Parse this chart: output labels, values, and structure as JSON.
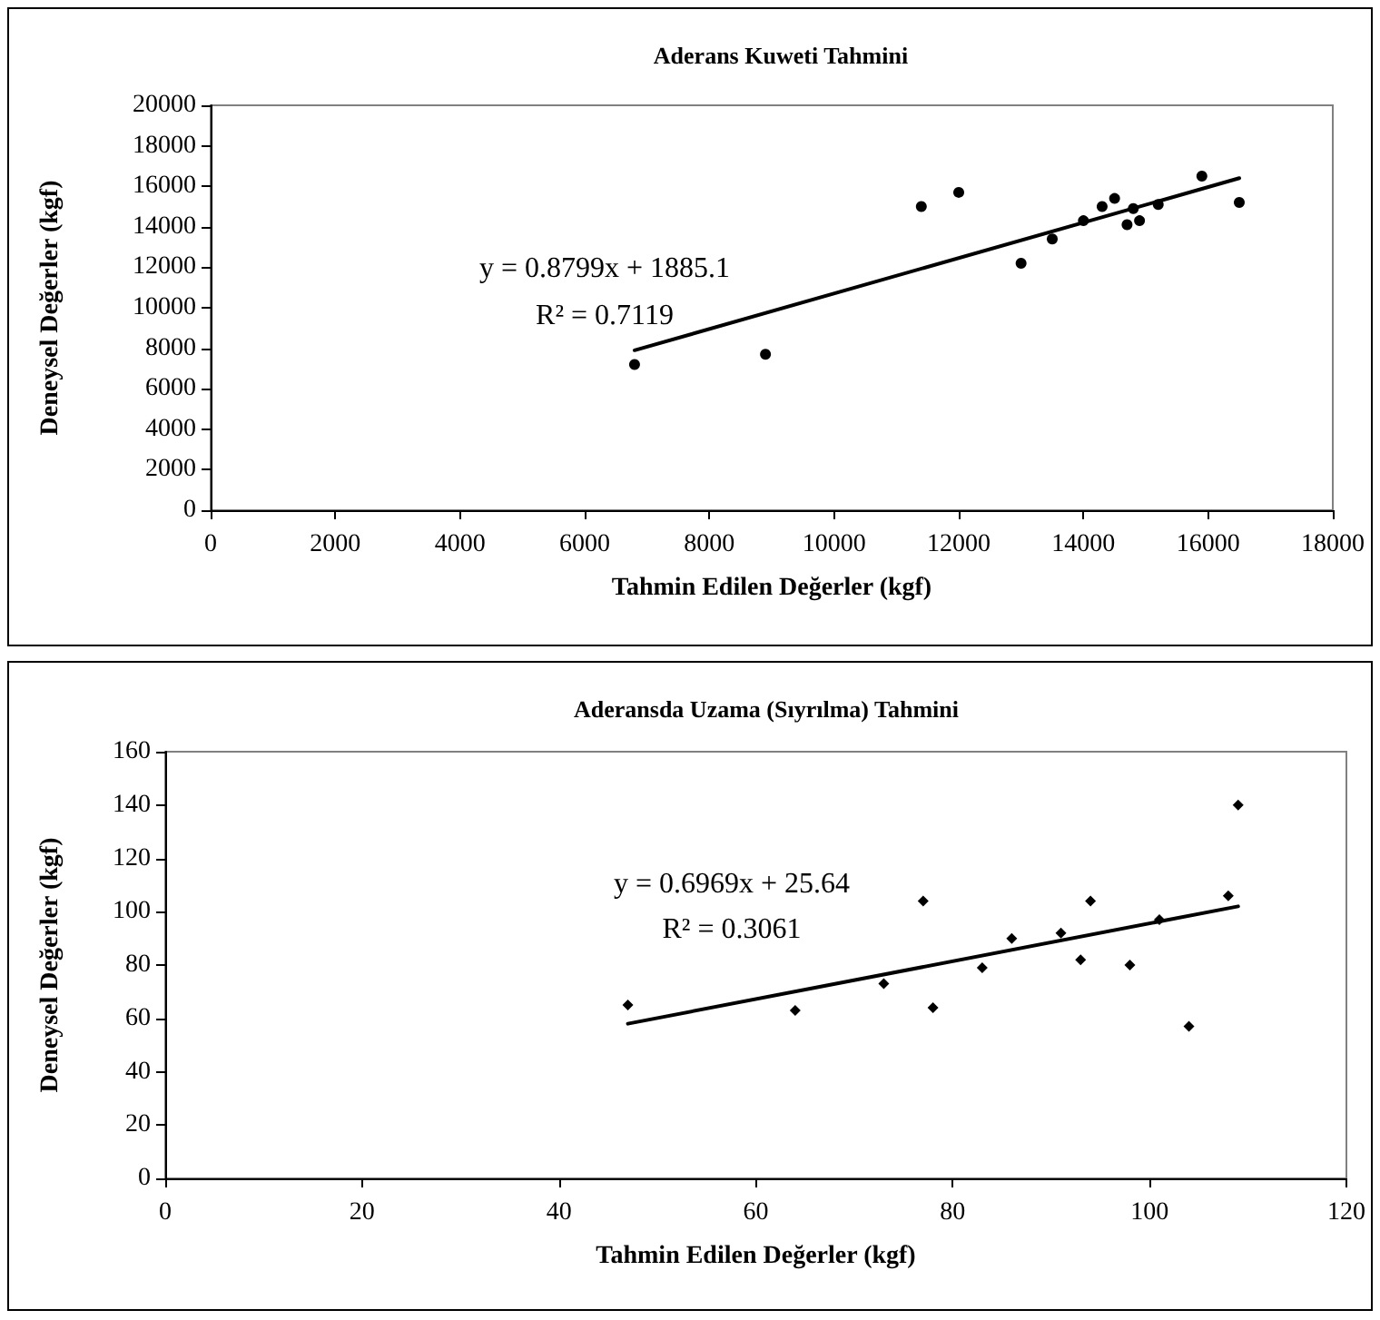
{
  "chart_data": [
    {
      "type": "scatter",
      "title": "Aderans Kuweti Tahmini",
      "xlabel": "Tahmin Edilen Değerler (kgf)",
      "ylabel": "Deneysel Değerler (kgf)",
      "xlim": [
        0,
        18000
      ],
      "xticks": [
        0,
        2000,
        4000,
        6000,
        8000,
        10000,
        12000,
        14000,
        16000,
        18000
      ],
      "ylim": [
        0,
        20000
      ],
      "yticks": [
        0,
        2000,
        4000,
        6000,
        8000,
        10000,
        12000,
        14000,
        16000,
        18000,
        20000
      ],
      "marker": "circle",
      "annotations": [
        "y = 0.8799x + 1885.1",
        "R² = 0.7119"
      ],
      "series": [
        {
          "color": "#000000",
          "x": [
            6800,
            8900,
            11400,
            12000,
            13000,
            13500,
            14000,
            14300,
            14500,
            14700,
            14800,
            14900,
            15200,
            15900,
            16500
          ],
          "values": [
            7200,
            7700,
            15000,
            15700,
            12200,
            13400,
            14300,
            15000,
            15400,
            14100,
            14900,
            14300,
            15100,
            16500,
            15200
          ]
        },
        {
          "type": "line",
          "marker": "none",
          "color": "#000000",
          "x": [
            6800,
            16500
          ],
          "values": [
            7900,
            16400
          ]
        }
      ]
    },
    {
      "type": "scatter",
      "title": "Aderansda Uzama (Sıyrılma) Tahmini",
      "xlabel": "Tahmin Edilen Değerler (kgf)",
      "ylabel": "Deneysel Değerler (kgf)",
      "xlim": [
        0,
        120
      ],
      "xticks": [
        0,
        20,
        40,
        60,
        80,
        100,
        120
      ],
      "ylim": [
        0,
        160
      ],
      "yticks": [
        0,
        20,
        40,
        60,
        80,
        100,
        120,
        140,
        160
      ],
      "marker": "diamond",
      "annotations": [
        "y = 0.6969x + 25.64",
        "R² = 0.3061"
      ],
      "series": [
        {
          "color": "#000000",
          "x": [
            47,
            64,
            73,
            77,
            78,
            83,
            86,
            91,
            93,
            94,
            98,
            101,
            104,
            108,
            109
          ],
          "values": [
            65,
            63,
            73,
            104,
            64,
            79,
            90,
            92,
            82,
            104,
            80,
            97,
            57,
            106,
            140
          ]
        },
        {
          "type": "line",
          "marker": "none",
          "color": "#000000",
          "x": [
            47,
            109
          ],
          "values": [
            58,
            102
          ]
        }
      ]
    }
  ]
}
